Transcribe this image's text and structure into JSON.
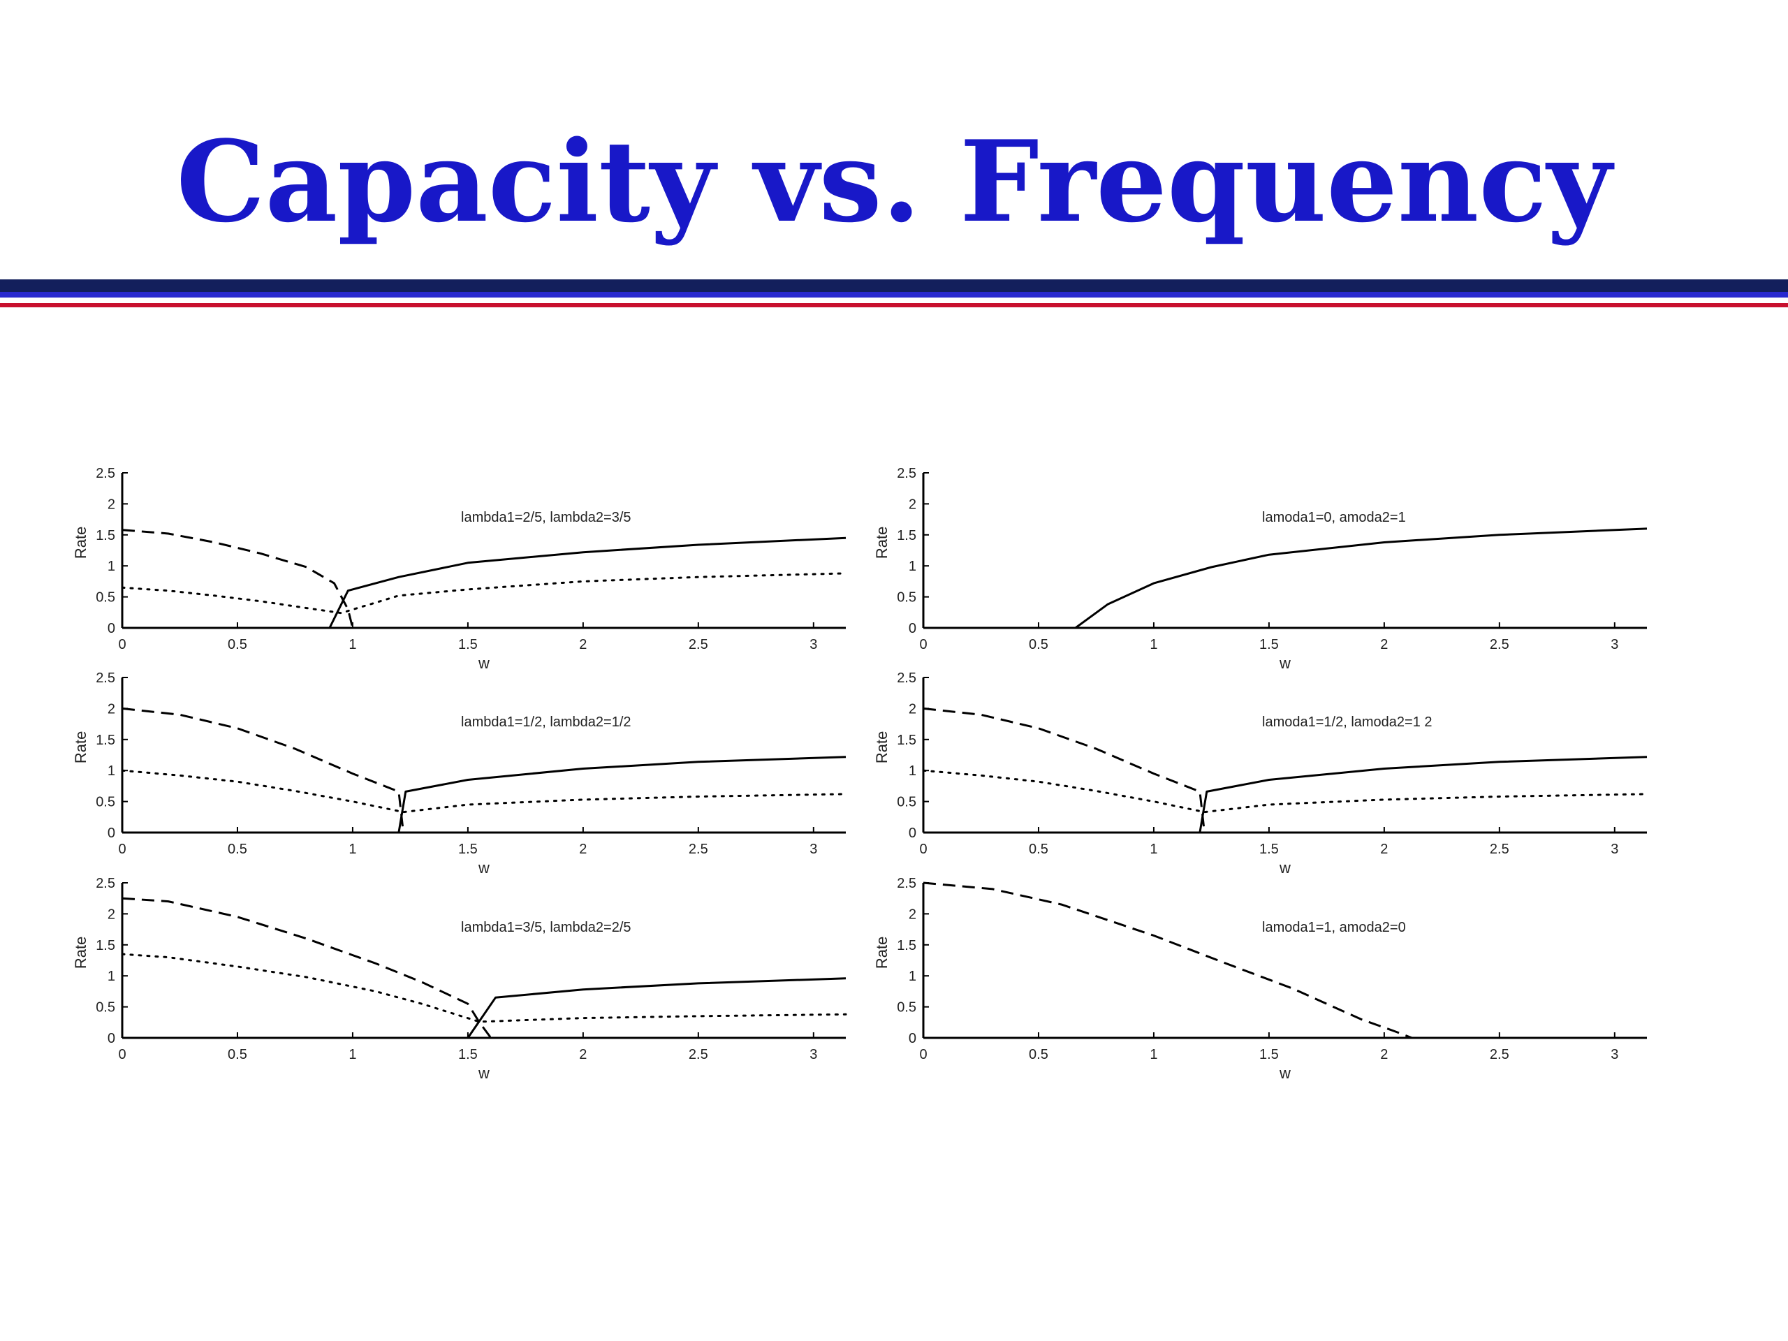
{
  "slide": {
    "title": "Capacity vs. Frequency"
  },
  "colors": {
    "title": "#1818c8",
    "rule_dark": "#131f5c",
    "rule_blue": "#2a2ad0",
    "rule_red": "#c8102e"
  },
  "chart_data": [
    {
      "type": "line",
      "annotation": "lambda1=2/5, lambda2=3/5",
      "xlabel": "w",
      "ylabel": "Rate",
      "xlim": [
        0,
        3.14
      ],
      "ylim": [
        0,
        2.5
      ],
      "xticks": [
        0,
        0.5,
        1,
        1.5,
        2,
        2.5,
        3
      ],
      "yticks": [
        0,
        0.5,
        1,
        1.5,
        2,
        2.5
      ],
      "series": [
        {
          "style": "dashed",
          "x": [
            0,
            0.2,
            0.4,
            0.6,
            0.8,
            0.92,
            0.98,
            1.0,
            3.14
          ],
          "y": [
            1.58,
            1.52,
            1.38,
            1.2,
            0.98,
            0.72,
            0.3,
            0,
            0
          ]
        },
        {
          "style": "solid",
          "x": [
            0,
            0.9,
            0.98,
            1.2,
            1.5,
            2.0,
            2.5,
            3.14
          ],
          "y": [
            0,
            0,
            0.6,
            0.82,
            1.05,
            1.22,
            1.34,
            1.45
          ]
        },
        {
          "style": "dotted",
          "x": [
            0,
            0.2,
            0.4,
            0.6,
            0.8,
            0.95,
            1.2,
            1.5,
            2.0,
            2.5,
            3.14
          ],
          "y": [
            0.65,
            0.6,
            0.52,
            0.43,
            0.32,
            0.24,
            0.52,
            0.62,
            0.75,
            0.82,
            0.88
          ]
        }
      ]
    },
    {
      "type": "line",
      "annotation": "lamoda1=0, amoda2=1",
      "xlabel": "w",
      "ylabel": "Rate",
      "xlim": [
        0,
        3.14
      ],
      "ylim": [
        0,
        2.5
      ],
      "xticks": [
        0,
        0.5,
        1,
        1.5,
        2,
        2.5,
        3
      ],
      "yticks": [
        0,
        0.5,
        1,
        1.5,
        2,
        2.5
      ],
      "series": [
        {
          "style": "solid",
          "x": [
            0,
            0.66,
            0.8,
            1.0,
            1.25,
            1.5,
            2.0,
            2.5,
            3.14
          ],
          "y": [
            0,
            0,
            0.38,
            0.72,
            0.98,
            1.18,
            1.38,
            1.5,
            1.6
          ]
        }
      ]
    },
    {
      "type": "line",
      "annotation": "lambda1=1/2, lambda2=1/2",
      "xlabel": "w",
      "ylabel": "Rate",
      "xlim": [
        0,
        3.14
      ],
      "ylim": [
        0,
        2.5
      ],
      "xticks": [
        0,
        0.5,
        1,
        1.5,
        2,
        2.5,
        3
      ],
      "yticks": [
        0,
        0.5,
        1,
        1.5,
        2,
        2.5
      ],
      "series": [
        {
          "style": "dashed",
          "x": [
            0,
            0.25,
            0.5,
            0.75,
            1.0,
            1.2,
            1.22,
            3.14
          ],
          "y": [
            2.0,
            1.9,
            1.68,
            1.35,
            0.95,
            0.66,
            0,
            0
          ]
        },
        {
          "style": "solid",
          "x": [
            0,
            1.2,
            1.23,
            1.5,
            2.0,
            2.5,
            3.14
          ],
          "y": [
            0,
            0,
            0.66,
            0.85,
            1.03,
            1.14,
            1.22
          ]
        },
        {
          "style": "dotted",
          "x": [
            0,
            0.25,
            0.5,
            0.75,
            1.0,
            1.22,
            1.5,
            2.0,
            2.5,
            3.14
          ],
          "y": [
            1.0,
            0.92,
            0.82,
            0.67,
            0.5,
            0.33,
            0.45,
            0.53,
            0.58,
            0.62
          ]
        }
      ]
    },
    {
      "type": "line",
      "annotation": "lamoda1=1/2, lamoda2=1 2",
      "xlabel": "w",
      "ylabel": "Rate",
      "xlim": [
        0,
        3.14
      ],
      "ylim": [
        0,
        2.5
      ],
      "xticks": [
        0,
        0.5,
        1,
        1.5,
        2,
        2.5,
        3
      ],
      "yticks": [
        0,
        0.5,
        1,
        1.5,
        2,
        2.5
      ],
      "series": [
        {
          "style": "dashed",
          "x": [
            0,
            0.25,
            0.5,
            0.75,
            1.0,
            1.2,
            1.22,
            3.14
          ],
          "y": [
            2.0,
            1.9,
            1.68,
            1.35,
            0.95,
            0.66,
            0,
            0
          ]
        },
        {
          "style": "solid",
          "x": [
            0,
            1.2,
            1.23,
            1.5,
            2.0,
            2.5,
            3.14
          ],
          "y": [
            0,
            0,
            0.66,
            0.85,
            1.03,
            1.14,
            1.22
          ]
        },
        {
          "style": "dotted",
          "x": [
            0,
            0.25,
            0.5,
            0.75,
            1.0,
            1.22,
            1.5,
            2.0,
            2.5,
            3.14
          ],
          "y": [
            1.0,
            0.92,
            0.82,
            0.67,
            0.5,
            0.33,
            0.45,
            0.53,
            0.58,
            0.62
          ]
        }
      ]
    },
    {
      "type": "line",
      "annotation": "lambda1=3/5, lambda2=2/5",
      "xlabel": "w",
      "ylabel": "Rate",
      "xlim": [
        0,
        3.14
      ],
      "ylim": [
        0,
        2.5
      ],
      "xticks": [
        0,
        0.5,
        1,
        1.5,
        2,
        2.5,
        3
      ],
      "yticks": [
        0,
        0.5,
        1,
        1.5,
        2,
        2.5
      ],
      "series": [
        {
          "style": "dashed",
          "x": [
            0,
            0.2,
            0.5,
            0.8,
            1.1,
            1.3,
            1.5,
            1.55,
            1.6,
            3.14
          ],
          "y": [
            2.25,
            2.2,
            1.95,
            1.6,
            1.2,
            0.9,
            0.55,
            0.25,
            0,
            0
          ]
        },
        {
          "style": "solid",
          "x": [
            0,
            1.5,
            1.62,
            2.0,
            2.5,
            3.14
          ],
          "y": [
            0,
            0,
            0.65,
            0.78,
            0.88,
            0.96
          ]
        },
        {
          "style": "dotted",
          "x": [
            0,
            0.2,
            0.5,
            0.8,
            1.1,
            1.3,
            1.55,
            2.0,
            2.5,
            3.14
          ],
          "y": [
            1.35,
            1.3,
            1.15,
            0.98,
            0.75,
            0.55,
            0.26,
            0.32,
            0.35,
            0.38
          ]
        }
      ]
    },
    {
      "type": "line",
      "annotation": "lamoda1=1, amoda2=0",
      "xlabel": "w",
      "ylabel": "Rate",
      "xlim": [
        0,
        3.14
      ],
      "ylim": [
        0,
        2.5
      ],
      "xticks": [
        0,
        0.5,
        1,
        1.5,
        2,
        2.5,
        3
      ],
      "yticks": [
        0,
        0.5,
        1,
        1.5,
        2,
        2.5
      ],
      "series": [
        {
          "style": "dashed",
          "x": [
            0,
            0.3,
            0.6,
            1.0,
            1.3,
            1.6,
            1.9,
            2.05,
            2.12
          ],
          "y": [
            2.5,
            2.4,
            2.15,
            1.65,
            1.22,
            0.8,
            0.3,
            0.1,
            0
          ]
        }
      ]
    }
  ]
}
